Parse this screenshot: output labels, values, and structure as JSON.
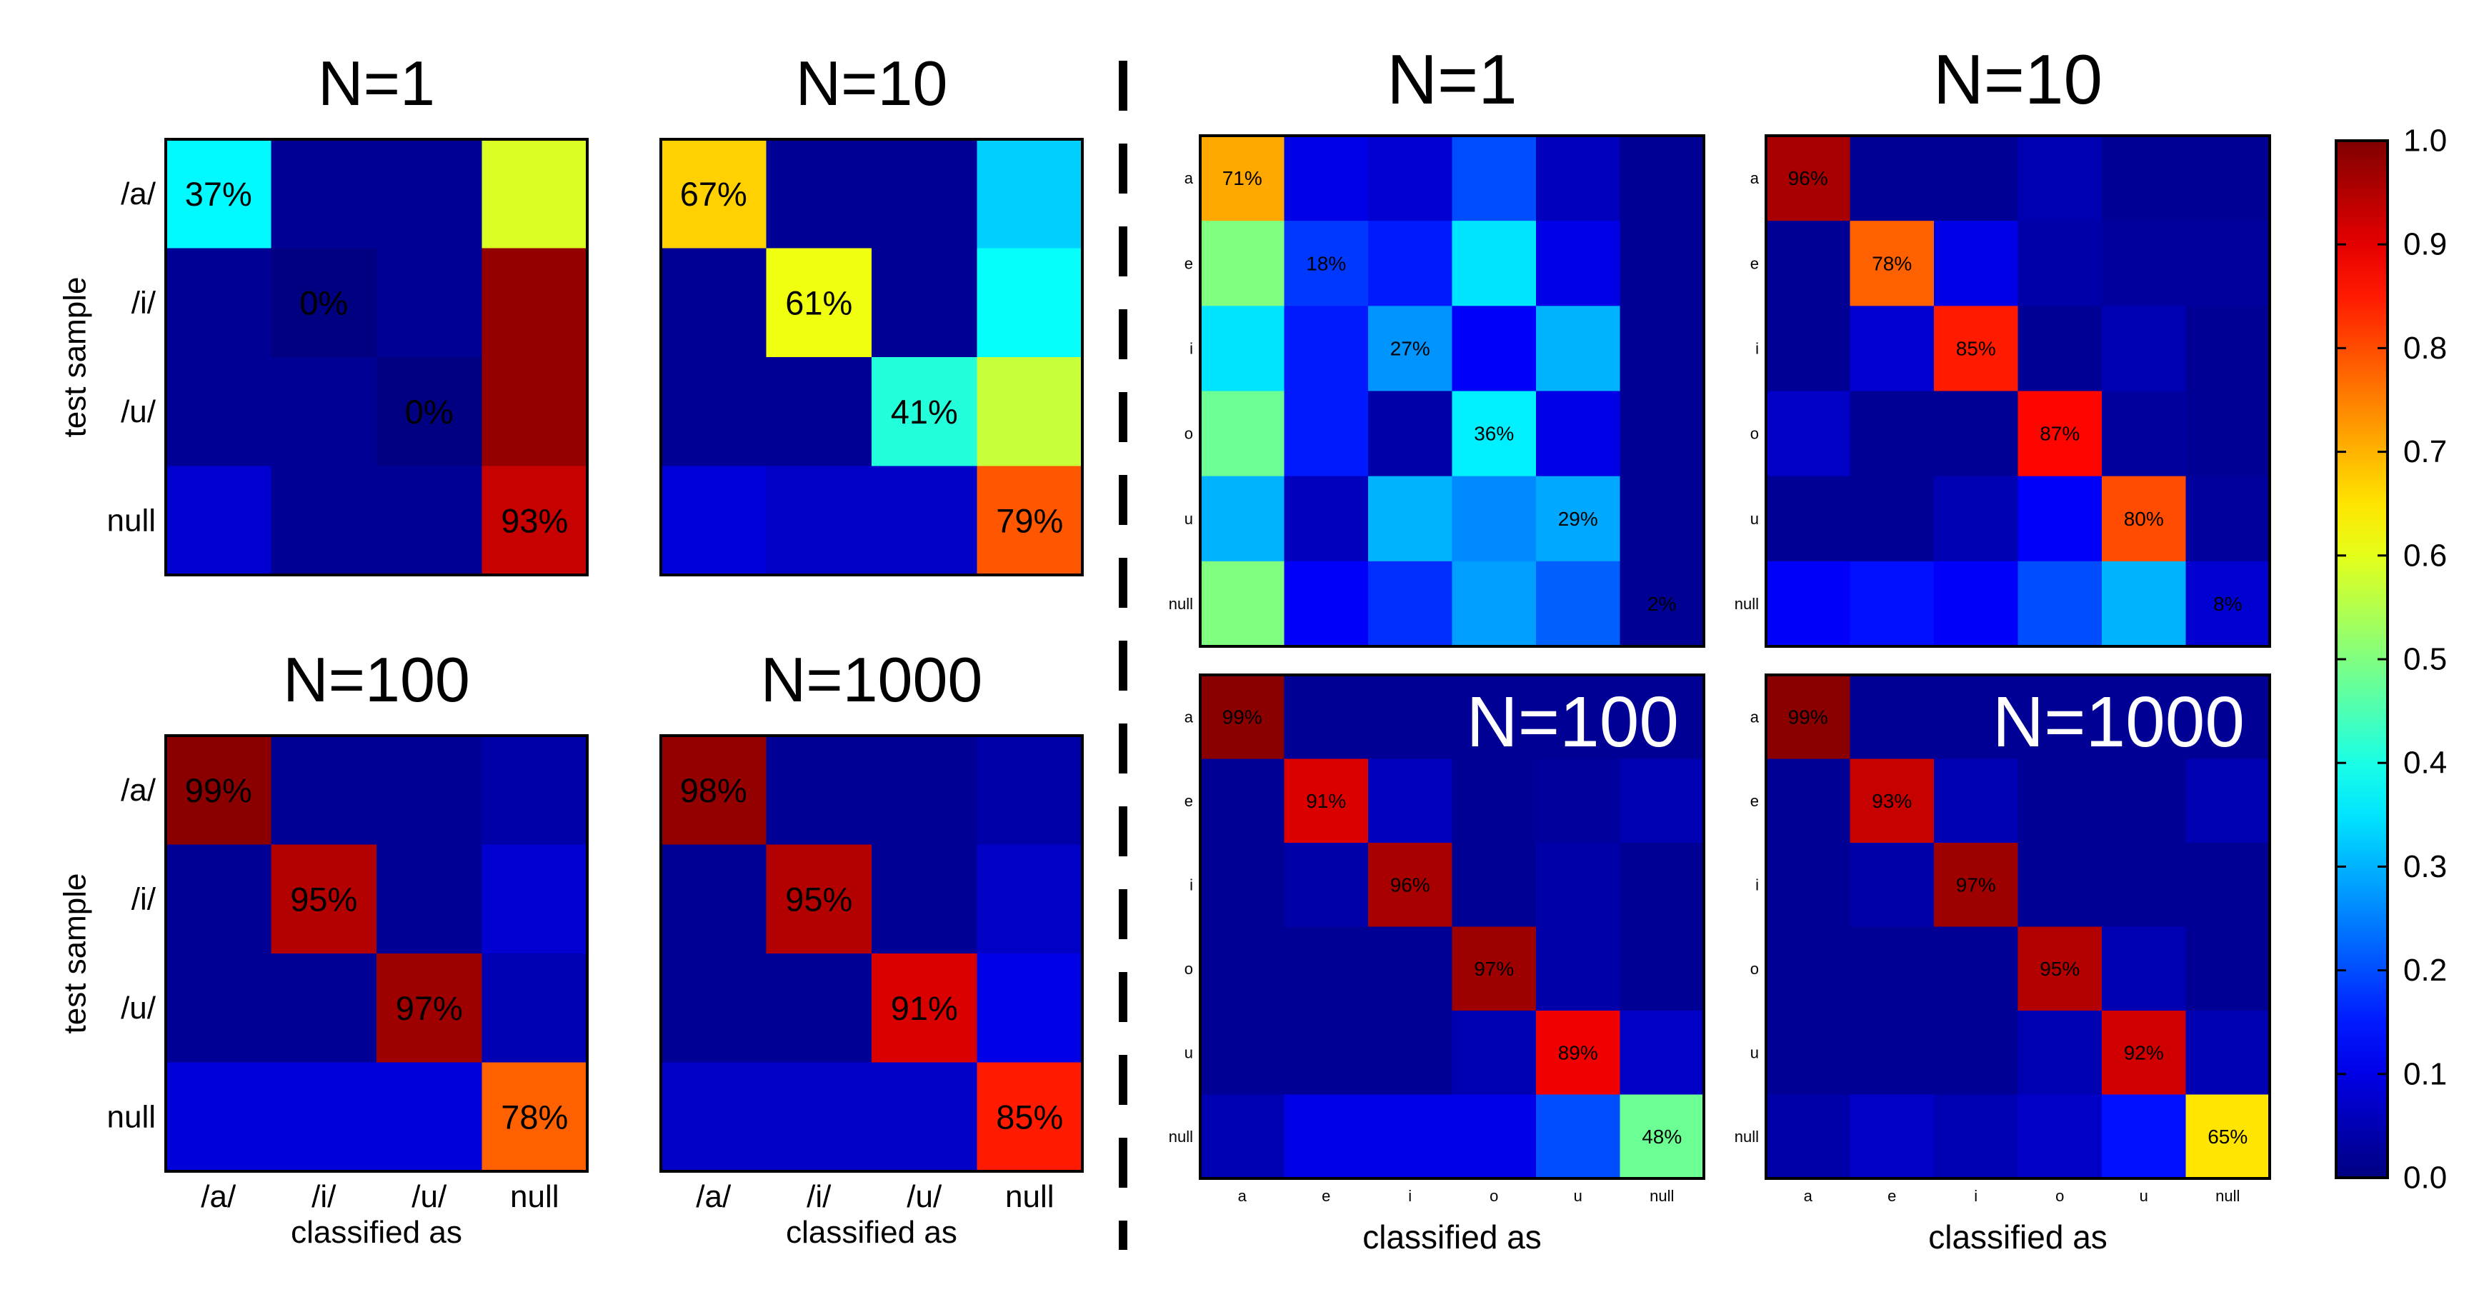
{
  "colorbar": {
    "ticks": [
      "1.0",
      "0.9",
      "0.8",
      "0.7",
      "0.6",
      "0.5",
      "0.4",
      "0.3",
      "0.2",
      "0.1",
      "0.0"
    ],
    "range": [
      0,
      1
    ],
    "colormap": "jet"
  },
  "chart_data": [
    {
      "type": "heatmap",
      "id": "left-n1",
      "title": "N=1",
      "title_style": "above",
      "row_labels": [
        "/a/",
        "/i/",
        "/u/",
        "null"
      ],
      "col_labels": [
        "/a/",
        "/i/",
        "/u/",
        "null"
      ],
      "ylabel": "test sample",
      "xlabel": "",
      "values": [
        [
          0.37,
          0.02,
          0.02,
          0.59
        ],
        [
          0.02,
          0.0,
          0.02,
          0.98
        ],
        [
          0.02,
          0.02,
          0.0,
          0.98
        ],
        [
          0.08,
          0.02,
          0.02,
          0.93
        ]
      ],
      "diag_labels": [
        "37%",
        "0%",
        "0%",
        "93%"
      ],
      "show_xticks": false,
      "show_yticks": true,
      "label_size": "large"
    },
    {
      "type": "heatmap",
      "id": "left-n10",
      "title": "N=10",
      "title_style": "above",
      "row_labels": [
        "/a/",
        "/i/",
        "/u/",
        "null"
      ],
      "col_labels": [
        "/a/",
        "/i/",
        "/u/",
        "null"
      ],
      "ylabel": "",
      "xlabel": "",
      "values": [
        [
          0.67,
          0.02,
          0.02,
          0.33
        ],
        [
          0.02,
          0.61,
          0.02,
          0.38
        ],
        [
          0.02,
          0.02,
          0.41,
          0.57
        ],
        [
          0.09,
          0.07,
          0.07,
          0.79
        ]
      ],
      "diag_labels": [
        "67%",
        "61%",
        "41%",
        "79%"
      ],
      "show_xticks": false,
      "show_yticks": false,
      "label_size": "large"
    },
    {
      "type": "heatmap",
      "id": "left-n100",
      "title": "N=100",
      "title_style": "above",
      "row_labels": [
        "/a/",
        "/i/",
        "/u/",
        "null"
      ],
      "col_labels": [
        "/a/",
        "/i/",
        "/u/",
        "null"
      ],
      "ylabel": "test sample",
      "xlabel": "classified as",
      "values": [
        [
          0.99,
          0.02,
          0.02,
          0.04
        ],
        [
          0.02,
          0.95,
          0.02,
          0.08
        ],
        [
          0.02,
          0.02,
          0.97,
          0.05
        ],
        [
          0.09,
          0.09,
          0.09,
          0.78
        ]
      ],
      "diag_labels": [
        "99%",
        "95%",
        "97%",
        "78%"
      ],
      "show_xticks": true,
      "show_yticks": true,
      "label_size": "large"
    },
    {
      "type": "heatmap",
      "id": "left-n1000",
      "title": "N=1000",
      "title_style": "above",
      "row_labels": [
        "/a/",
        "/i/",
        "/u/",
        "null"
      ],
      "col_labels": [
        "/a/",
        "/i/",
        "/u/",
        "null"
      ],
      "ylabel": "",
      "xlabel": "classified as",
      "values": [
        [
          0.98,
          0.02,
          0.02,
          0.04
        ],
        [
          0.02,
          0.95,
          0.02,
          0.07
        ],
        [
          0.02,
          0.02,
          0.91,
          0.1
        ],
        [
          0.07,
          0.07,
          0.07,
          0.85
        ]
      ],
      "diag_labels": [
        "98%",
        "95%",
        "91%",
        "85%"
      ],
      "show_xticks": true,
      "show_yticks": false,
      "label_size": "large"
    },
    {
      "type": "heatmap",
      "id": "right-n1",
      "title": "N=1",
      "title_style": "above",
      "row_labels": [
        "a",
        "e",
        "i",
        "o",
        "u",
        "null"
      ],
      "col_labels": [
        "a",
        "e",
        "i",
        "o",
        "u",
        "null"
      ],
      "ylabel": "",
      "xlabel": "",
      "values": [
        [
          0.71,
          0.1,
          0.08,
          0.2,
          0.06,
          0.02
        ],
        [
          0.5,
          0.18,
          0.15,
          0.35,
          0.1,
          0.02
        ],
        [
          0.35,
          0.15,
          0.27,
          0.12,
          0.3,
          0.02
        ],
        [
          0.48,
          0.15,
          0.04,
          0.36,
          0.1,
          0.02
        ],
        [
          0.3,
          0.06,
          0.3,
          0.26,
          0.29,
          0.02
        ],
        [
          0.5,
          0.12,
          0.17,
          0.28,
          0.22,
          0.02
        ]
      ],
      "diag_labels": [
        "71%",
        "18%",
        "27%",
        "36%",
        "29%",
        "2%"
      ],
      "show_xticks": false,
      "show_yticks": true,
      "label_size": "small"
    },
    {
      "type": "heatmap",
      "id": "right-n10",
      "title": "N=10",
      "title_style": "above",
      "row_labels": [
        "a",
        "e",
        "i",
        "o",
        "u",
        "null"
      ],
      "col_labels": [
        "a",
        "e",
        "i",
        "o",
        "u",
        "null"
      ],
      "ylabel": "",
      "xlabel": "",
      "values": [
        [
          0.96,
          0.02,
          0.02,
          0.05,
          0.02,
          0.02
        ],
        [
          0.02,
          0.78,
          0.1,
          0.04,
          0.03,
          0.03
        ],
        [
          0.02,
          0.08,
          0.85,
          0.02,
          0.05,
          0.02
        ],
        [
          0.07,
          0.02,
          0.02,
          0.87,
          0.03,
          0.02
        ],
        [
          0.02,
          0.02,
          0.05,
          0.12,
          0.8,
          0.03
        ],
        [
          0.12,
          0.14,
          0.12,
          0.2,
          0.3,
          0.08
        ]
      ],
      "diag_labels": [
        "96%",
        "78%",
        "85%",
        "87%",
        "80%",
        "8%"
      ],
      "show_xticks": false,
      "show_yticks": true,
      "label_size": "small"
    },
    {
      "type": "heatmap",
      "id": "right-n100",
      "title": "N=100",
      "title_style": "inside",
      "row_labels": [
        "a",
        "e",
        "i",
        "o",
        "u",
        "null"
      ],
      "col_labels": [
        "a",
        "e",
        "i",
        "o",
        "u",
        "null"
      ],
      "ylabel": "",
      "xlabel": "classified as",
      "values": [
        [
          0.99,
          0.02,
          0.02,
          0.02,
          0.02,
          0.02
        ],
        [
          0.02,
          0.91,
          0.06,
          0.02,
          0.03,
          0.05
        ],
        [
          0.02,
          0.04,
          0.96,
          0.02,
          0.04,
          0.02
        ],
        [
          0.02,
          0.02,
          0.02,
          0.97,
          0.04,
          0.02
        ],
        [
          0.02,
          0.02,
          0.02,
          0.05,
          0.89,
          0.07
        ],
        [
          0.05,
          0.1,
          0.1,
          0.1,
          0.2,
          0.48
        ]
      ],
      "diag_labels": [
        "99%",
        "91%",
        "96%",
        "97%",
        "89%",
        "48%"
      ],
      "show_xticks": true,
      "show_yticks": true,
      "label_size": "small"
    },
    {
      "type": "heatmap",
      "id": "right-n1000",
      "title": "N=1000",
      "title_style": "inside",
      "row_labels": [
        "a",
        "e",
        "i",
        "o",
        "u",
        "null"
      ],
      "col_labels": [
        "a",
        "e",
        "i",
        "o",
        "u",
        "null"
      ],
      "ylabel": "",
      "xlabel": "classified as",
      "values": [
        [
          0.99,
          0.02,
          0.02,
          0.02,
          0.02,
          0.02
        ],
        [
          0.02,
          0.93,
          0.05,
          0.02,
          0.02,
          0.05
        ],
        [
          0.02,
          0.04,
          0.97,
          0.02,
          0.02,
          0.02
        ],
        [
          0.02,
          0.02,
          0.02,
          0.95,
          0.05,
          0.02
        ],
        [
          0.02,
          0.02,
          0.02,
          0.05,
          0.92,
          0.05
        ],
        [
          0.04,
          0.07,
          0.05,
          0.07,
          0.14,
          0.65
        ]
      ],
      "diag_labels": [
        "99%",
        "93%",
        "97%",
        "95%",
        "92%",
        "65%"
      ],
      "show_xticks": true,
      "show_yticks": true,
      "label_size": "small"
    }
  ]
}
